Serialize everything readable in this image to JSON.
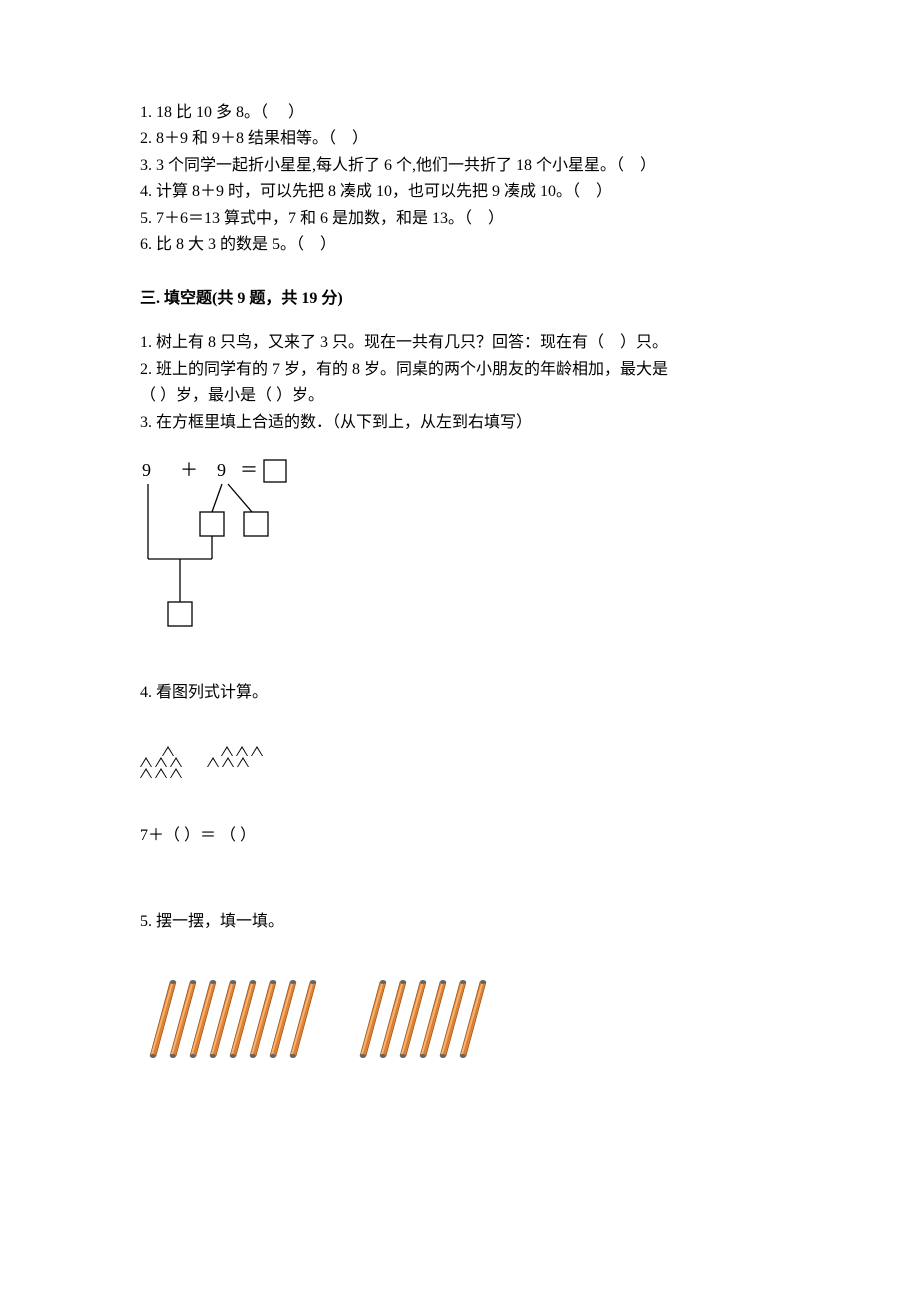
{
  "tf_items": [
    "1. 18 比 10 多 8。（     ）",
    "2. 8＋9 和 9＋8 结果相等。（    ）",
    "3. 3 个同学一起折小星星,每人折了 6 个,他们一共折了 18 个小星星。（    ）",
    "4. 计算 8＋9 时，可以先把 8 凑成 10，也可以先把 9 凑成 10。（    ）",
    "5. 7＋6＝13 算式中，7 和 6 是加数，和是 13。（    ）",
    "6. 比 8 大 3 的数是 5。（    ）"
  ],
  "section3_heading": "三. 填空题(共 9 题，共 19 分)",
  "fill_items": {
    "q1": "1. 树上有 8 只鸟，又来了 3 只。现在一共有几只？回答：现在有（    ）只。",
    "q2a": "2. 班上的同学有的 7 岁，有的 8 岁。同桌的两个小朋友的年龄相加，最大是",
    "q2b": "（     ）岁，最小是（     ）岁。",
    "q3": "3. 在方框里填上合适的数．（从下到上，从左到右填写）",
    "q4_label": "4. 看图列式计算。",
    "q4_expr": "7＋（     ）＝ （     ）",
    "q5_label": "5. 摆一摆，填一填。"
  },
  "q3_diagram": {
    "expression_parts": {
      "a": "9",
      "plus": "＋",
      "b": "9",
      "eq": "＝"
    },
    "box_size": 22,
    "stroke": "#000000",
    "font_size": 18
  },
  "q4_triangles": {
    "group1": {
      "top_count": 1,
      "mid_count": 3,
      "bot_count": 3
    },
    "group2": {
      "top_count": 3,
      "mid_count": 3,
      "bot_count": 0,
      "leading_spacer": true
    },
    "stroke": "#000000"
  },
  "q5_sticks": {
    "group1_count": 8,
    "group2_count": 6,
    "stick_color": "#e08030",
    "stick_highlight": "#f5b373",
    "stick_shadow": "#8a4a1a",
    "tip_color": "#666666"
  }
}
